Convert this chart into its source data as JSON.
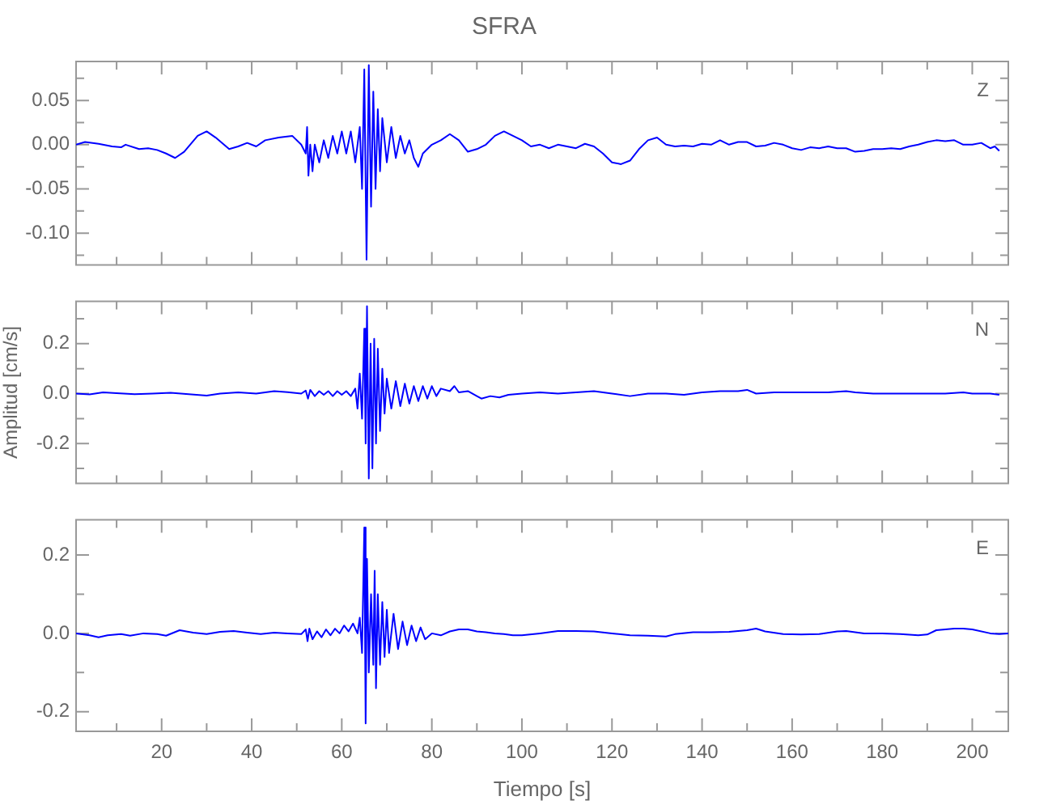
{
  "chart_data": [
    {
      "type": "line",
      "title": "SFRA",
      "annotations": [
        "Z"
      ],
      "color": "#0000ff",
      "marker": "none",
      "tick_labels": "y",
      "xlim": [
        1,
        208
      ],
      "xticks": [
        {
          "value": 10,
          "label": null
        },
        20,
        {
          "value": 30,
          "label": null
        },
        40,
        {
          "value": 50,
          "label": null
        },
        60,
        {
          "value": 70,
          "label": null
        },
        80,
        {
          "value": 90,
          "label": null
        },
        100,
        {
          "value": 110,
          "label": null
        },
        120,
        {
          "value": 130,
          "label": null
        },
        140,
        {
          "value": 150,
          "label": null
        },
        160,
        {
          "value": 170,
          "label": null
        },
        180,
        {
          "value": 190,
          "label": null
        },
        200
      ],
      "ylim": [
        -0.136,
        0.094
      ],
      "yticks": [
        {
          "value": -0.125,
          "label": null
        },
        {
          "value": -0.1,
          "label": "-0.10"
        },
        {
          "value": -0.075,
          "label": null
        },
        -0.05,
        {
          "value": -0.025,
          "label": null
        },
        {
          "value": 0,
          "label": "0.00"
        },
        {
          "value": 0.025,
          "label": null
        },
        0.05,
        {
          "value": 0.075,
          "label": null
        }
      ],
      "x": [
        1,
        3,
        6,
        9,
        11,
        12,
        15,
        17,
        19,
        21,
        23,
        25,
        28,
        30,
        32,
        35,
        37,
        39,
        41,
        43,
        46,
        49,
        51,
        52,
        52.3,
        52.6,
        53,
        53.5,
        54,
        55,
        56,
        57,
        58,
        59,
        60,
        61,
        62,
        63,
        64,
        64.5,
        65,
        65.5,
        66,
        66.5,
        67,
        67.5,
        68,
        68.5,
        69,
        70,
        71,
        72,
        73,
        74,
        75,
        76,
        77,
        78,
        80,
        82,
        84,
        86,
        88,
        90,
        92,
        94,
        96,
        98,
        100,
        102,
        104,
        106,
        108,
        110,
        112,
        114,
        116,
        118,
        120,
        122,
        124,
        126,
        128,
        130,
        132,
        134,
        136,
        138,
        140,
        142,
        144,
        146,
        148,
        150,
        152,
        154,
        156,
        158,
        160,
        162,
        164,
        166,
        168,
        170,
        172,
        174,
        176,
        178,
        180,
        182,
        184,
        186,
        188,
        190,
        192,
        194,
        196,
        198,
        200,
        202,
        204,
        205,
        206
      ],
      "values": [
        0.0,
        0.003,
        0.001,
        -0.002,
        -0.003,
        0.0,
        -0.005,
        -0.004,
        -0.006,
        -0.01,
        -0.015,
        -0.008,
        0.01,
        0.015,
        0.008,
        -0.005,
        -0.002,
        0.002,
        -0.002,
        0.005,
        0.008,
        0.01,
        0.0,
        -0.01,
        0.02,
        -0.035,
        0.0,
        -0.03,
        0.0,
        -0.02,
        0.005,
        -0.015,
        0.01,
        -0.01,
        0.015,
        -0.01,
        0.015,
        -0.02,
        0.02,
        -0.05,
        0.085,
        -0.13,
        0.09,
        -0.07,
        0.06,
        -0.05,
        0.04,
        -0.03,
        0.03,
        -0.02,
        0.02,
        -0.015,
        0.01,
        -0.01,
        0.005,
        -0.015,
        -0.025,
        -0.01,
        0.0,
        0.005,
        0.012,
        0.005,
        -0.008,
        -0.005,
        0.0,
        0.01,
        0.015,
        0.01,
        0.005,
        -0.002,
        0.0,
        -0.004,
        0.0,
        -0.002,
        -0.004,
        0.001,
        -0.002,
        -0.01,
        -0.02,
        -0.022,
        -0.018,
        -0.005,
        0.005,
        0.008,
        0.0,
        -0.002,
        -0.001,
        -0.002,
        0.001,
        0.0,
        0.005,
        0.0,
        0.003,
        0.003,
        -0.002,
        -0.001,
        0.002,
        0.0,
        -0.004,
        -0.006,
        -0.003,
        -0.004,
        -0.002,
        -0.004,
        -0.004,
        -0.008,
        -0.007,
        -0.005,
        -0.005,
        -0.004,
        -0.005,
        -0.002,
        0.0,
        0.003,
        0.005,
        0.004,
        0.005,
        0.0,
        0.0,
        0.002,
        -0.004,
        -0.002,
        -0.007
      ]
    },
    {
      "type": "line",
      "ylabel": "Amplitud [cm/s]",
      "annotations": [
        "N"
      ],
      "color": "#0000ff",
      "marker": "none",
      "tick_labels": "y",
      "xlim": [
        1,
        208
      ],
      "xticks": [
        {
          "value": 10,
          "label": null
        },
        20,
        {
          "value": 30,
          "label": null
        },
        40,
        {
          "value": 50,
          "label": null
        },
        60,
        {
          "value": 70,
          "label": null
        },
        80,
        {
          "value": 90,
          "label": null
        },
        100,
        {
          "value": 110,
          "label": null
        },
        120,
        {
          "value": 130,
          "label": null
        },
        140,
        {
          "value": 150,
          "label": null
        },
        160,
        {
          "value": 170,
          "label": null
        },
        180,
        {
          "value": 190,
          "label": null
        },
        200
      ],
      "ylim": [
        -0.36,
        0.37
      ],
      "yticks": [
        {
          "value": -0.3,
          "label": null
        },
        -0.2,
        {
          "value": -0.1,
          "label": null
        },
        {
          "value": 0,
          "label": "0.0"
        },
        {
          "value": 0.1,
          "label": null
        },
        0.2,
        {
          "value": 0.3,
          "label": null
        }
      ],
      "x": [
        1,
        4,
        7,
        10,
        14,
        18,
        22,
        26,
        30,
        33,
        37,
        41,
        45,
        48,
        51,
        52,
        52.5,
        53,
        54,
        55,
        56,
        57,
        58,
        59,
        60,
        61,
        62,
        63,
        63.5,
        64,
        64.5,
        65,
        65.3,
        65.6,
        66,
        66.4,
        66.8,
        67.2,
        67.6,
        68,
        68.5,
        69,
        69.5,
        70,
        71,
        72,
        73,
        74,
        75,
        76,
        77,
        78,
        79,
        80,
        81,
        82,
        84,
        85,
        86,
        88,
        90,
        91,
        93,
        95,
        97,
        100,
        104,
        108,
        112,
        116,
        120,
        124,
        128,
        132,
        136,
        140,
        144,
        148,
        150,
        152,
        156,
        160,
        164,
        168,
        172,
        174,
        178,
        182,
        186,
        190,
        194,
        198,
        200,
        204,
        206
      ],
      "values": [
        0.0,
        -0.003,
        0.005,
        0.002,
        -0.002,
        0.0,
        0.003,
        -0.002,
        -0.008,
        0.0,
        0.005,
        0.0,
        0.01,
        0.006,
        0.0,
        0.012,
        -0.02,
        0.015,
        -0.01,
        0.01,
        -0.005,
        0.01,
        -0.01,
        0.01,
        -0.005,
        0.01,
        -0.01,
        0.02,
        -0.06,
        0.08,
        -0.1,
        0.26,
        -0.2,
        0.35,
        -0.34,
        0.2,
        -0.3,
        0.22,
        -0.2,
        0.18,
        -0.15,
        0.1,
        -0.08,
        0.06,
        -0.06,
        0.05,
        -0.05,
        0.04,
        -0.04,
        0.03,
        -0.03,
        0.03,
        -0.02,
        0.03,
        -0.01,
        0.02,
        0.01,
        0.03,
        0.005,
        0.01,
        -0.01,
        -0.02,
        -0.01,
        -0.015,
        -0.005,
        0.0,
        0.005,
        0.0,
        0.005,
        0.01,
        0.0,
        -0.01,
        0.0,
        0.0,
        -0.005,
        0.005,
        0.01,
        0.01,
        0.015,
        0.0,
        0.005,
        0.005,
        0.005,
        0.005,
        0.01,
        0.005,
        0.0,
        0.0,
        0.0,
        0.0,
        0.0,
        0.005,
        0.0,
        0.0,
        -0.005
      ]
    },
    {
      "type": "line",
      "xlabel": "Tiempo [s]",
      "annotations": [
        "E"
      ],
      "color": "#0000ff",
      "marker": "none",
      "xlim": [
        1,
        208
      ],
      "xticks": [
        {
          "value": 10,
          "label": null
        },
        20,
        {
          "value": 30,
          "label": null
        },
        40,
        {
          "value": 50,
          "label": null
        },
        60,
        {
          "value": 70,
          "label": null
        },
        80,
        {
          "value": 90,
          "label": null
        },
        100,
        {
          "value": 110,
          "label": null
        },
        120,
        {
          "value": 130,
          "label": null
        },
        140,
        {
          "value": 150,
          "label": null
        },
        160,
        {
          "value": 170,
          "label": null
        },
        180,
        {
          "value": 190,
          "label": null
        },
        200
      ],
      "ylim": [
        -0.25,
        0.29
      ],
      "yticks": [
        -0.2,
        {
          "value": -0.1,
          "label": null
        },
        {
          "value": 0,
          "label": "0.0"
        },
        {
          "value": 0.1,
          "label": null
        },
        0.2
      ],
      "x": [
        1,
        4,
        6,
        8,
        11,
        13,
        16,
        19,
        21,
        24,
        27,
        30,
        33,
        36,
        39,
        42,
        45,
        48,
        51,
        52,
        52.4,
        52.8,
        53.5,
        54.5,
        55.5,
        56.5,
        57.5,
        58.5,
        59.5,
        60.5,
        61.5,
        62.5,
        63.5,
        64,
        64.5,
        65,
        65.3,
        65.6,
        66,
        66.5,
        67,
        67.3,
        67.6,
        68,
        68.5,
        69,
        69.5,
        70,
        70.5,
        71.5,
        72.5,
        73.5,
        74.5,
        75.5,
        76.5,
        77.5,
        78.5,
        80,
        82,
        84,
        86,
        88,
        90,
        92,
        94,
        96,
        98,
        100,
        104,
        108,
        112,
        116,
        120,
        124,
        128,
        132,
        134,
        138,
        142,
        146,
        150,
        152,
        154,
        158,
        162,
        166,
        170,
        172,
        176,
        180,
        184,
        188,
        190,
        192,
        196,
        198,
        200,
        204,
        206,
        208
      ],
      "values": [
        0.0,
        -0.005,
        -0.01,
        -0.005,
        -0.002,
        -0.006,
        0.0,
        -0.002,
        -0.006,
        0.008,
        0.002,
        -0.002,
        0.004,
        0.006,
        0.002,
        -0.002,
        0.002,
        0.0,
        -0.002,
        0.01,
        -0.02,
        0.012,
        -0.015,
        0.005,
        -0.01,
        0.01,
        -0.005,
        0.012,
        0.0,
        0.02,
        0.005,
        0.025,
        0.0,
        0.04,
        -0.05,
        0.27,
        -0.23,
        0.19,
        -0.1,
        0.1,
        -0.08,
        0.16,
        -0.14,
        0.1,
        -0.08,
        0.08,
        -0.06,
        0.06,
        -0.05,
        0.05,
        -0.04,
        0.03,
        -0.03,
        0.02,
        -0.02,
        0.015,
        -0.015,
        0.0,
        -0.005,
        0.005,
        0.01,
        0.01,
        0.005,
        0.003,
        0.0,
        -0.002,
        -0.005,
        -0.005,
        0.0,
        0.006,
        0.006,
        0.005,
        0.0,
        -0.005,
        -0.006,
        -0.008,
        -0.002,
        0.003,
        0.003,
        0.004,
        0.008,
        0.012,
        0.005,
        -0.002,
        -0.003,
        -0.002,
        0.005,
        0.006,
        0.0,
        0.0,
        -0.002,
        -0.005,
        -0.003,
        0.008,
        0.012,
        0.012,
        0.01,
        0.0,
        -0.002,
        0.0
      ]
    }
  ]
}
